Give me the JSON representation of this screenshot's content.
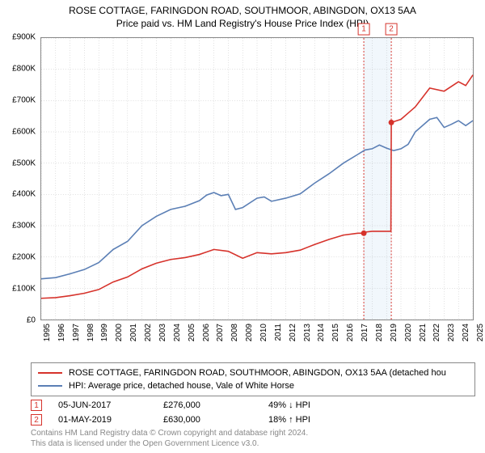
{
  "title": {
    "main": "ROSE COTTAGE, FARINGDON ROAD, SOUTHMOOR, ABINGDON, OX13 5AA",
    "sub": "Price paid vs. HM Land Registry's House Price Index (HPI)"
  },
  "chart": {
    "type": "line",
    "y_axis": {
      "min": 0,
      "max": 900,
      "step": 100,
      "tick_labels": [
        "£0",
        "£100K",
        "£200K",
        "£300K",
        "£400K",
        "£500K",
        "£600K",
        "£700K",
        "£800K",
        "£900K"
      ],
      "label_fontsize": 10
    },
    "x_axis": {
      "years": [
        1995,
        1996,
        1997,
        1998,
        1999,
        2000,
        2001,
        2002,
        2003,
        2004,
        2005,
        2006,
        2007,
        2008,
        2009,
        2010,
        2011,
        2012,
        2013,
        2014,
        2015,
        2016,
        2017,
        2018,
        2019,
        2020,
        2021,
        2022,
        2023,
        2024,
        2025
      ],
      "label_fontsize": 10,
      "label_rotation": -90
    },
    "grid_color": "#808080",
    "background_color": "#ffffff",
    "border_color": "#888888",
    "highlight_band": {
      "from_year": 2017.4,
      "to_year": 2019.3,
      "fill": "#c7dff5"
    },
    "markers": [
      {
        "id": "1",
        "year": 2017.42,
        "value": 276,
        "color": "#d6322b",
        "date": "05-JUN-2017",
        "price": "£276,000",
        "delta": "49% ↓ HPI"
      },
      {
        "id": "2",
        "year": 2019.33,
        "value": 630,
        "color": "#d6322b",
        "date": "01-MAY-2019",
        "price": "£630,000",
        "delta": "18% ↑ HPI"
      }
    ],
    "series": [
      {
        "name": "ROSE COTTAGE, FARINGDON ROAD, SOUTHMOOR, ABINGDON, OX13 5AA (detached hou",
        "color": "#d6322b",
        "width": 1.6,
        "points": [
          [
            1995,
            68
          ],
          [
            1996,
            70
          ],
          [
            1997,
            76
          ],
          [
            1998,
            84
          ],
          [
            1999,
            96
          ],
          [
            2000,
            120
          ],
          [
            2001,
            136
          ],
          [
            2002,
            162
          ],
          [
            2003,
            180
          ],
          [
            2004,
            192
          ],
          [
            2005,
            198
          ],
          [
            2006,
            208
          ],
          [
            2007,
            224
          ],
          [
            2008,
            218
          ],
          [
            2009,
            196
          ],
          [
            2010,
            214
          ],
          [
            2011,
            210
          ],
          [
            2012,
            214
          ],
          [
            2013,
            222
          ],
          [
            2014,
            240
          ],
          [
            2015,
            256
          ],
          [
            2016,
            270
          ],
          [
            2017,
            276
          ],
          [
            2017.4,
            276
          ],
          [
            2017.6,
            280
          ],
          [
            2018,
            282
          ],
          [
            2019,
            282
          ],
          [
            2019.3,
            282
          ],
          [
            2019.33,
            630
          ],
          [
            2020,
            640
          ],
          [
            2021,
            680
          ],
          [
            2022,
            740
          ],
          [
            2023,
            730
          ],
          [
            2024,
            760
          ],
          [
            2024.5,
            748
          ],
          [
            2025,
            782
          ]
        ]
      },
      {
        "name": "HPI: Average price, detached house, Vale of White Horse",
        "color": "#5b7fb5",
        "width": 1.6,
        "points": [
          [
            1995,
            130
          ],
          [
            1996,
            134
          ],
          [
            1997,
            146
          ],
          [
            1998,
            160
          ],
          [
            1999,
            182
          ],
          [
            2000,
            224
          ],
          [
            2001,
            250
          ],
          [
            2002,
            300
          ],
          [
            2003,
            330
          ],
          [
            2004,
            352
          ],
          [
            2005,
            362
          ],
          [
            2006,
            380
          ],
          [
            2006.5,
            398
          ],
          [
            2007,
            406
          ],
          [
            2007.5,
            396
          ],
          [
            2008,
            400
          ],
          [
            2008.5,
            352
          ],
          [
            2009,
            358
          ],
          [
            2010,
            388
          ],
          [
            2010.5,
            392
          ],
          [
            2011,
            378
          ],
          [
            2012,
            388
          ],
          [
            2013,
            402
          ],
          [
            2014,
            436
          ],
          [
            2015,
            466
          ],
          [
            2016,
            500
          ],
          [
            2017,
            528
          ],
          [
            2017.5,
            542
          ],
          [
            2018,
            546
          ],
          [
            2018.5,
            558
          ],
          [
            2019,
            548
          ],
          [
            2019.5,
            540
          ],
          [
            2020,
            546
          ],
          [
            2020.5,
            560
          ],
          [
            2021,
            600
          ],
          [
            2022,
            640
          ],
          [
            2022.5,
            646
          ],
          [
            2023,
            614
          ],
          [
            2023.5,
            624
          ],
          [
            2024,
            636
          ],
          [
            2024.5,
            620
          ],
          [
            2025,
            636
          ]
        ]
      }
    ]
  },
  "legend": {
    "rows": [
      {
        "color": "#d6322b",
        "label": "ROSE COTTAGE, FARINGDON ROAD, SOUTHMOOR, ABINGDON, OX13 5AA (detached hou"
      },
      {
        "color": "#5b7fb5",
        "label": "HPI: Average price, detached house, Vale of White Horse"
      }
    ]
  },
  "footer": {
    "line1": "Contains HM Land Registry data © Crown copyright and database right 2024.",
    "line2": "This data is licensed under the Open Government Licence v3.0."
  }
}
